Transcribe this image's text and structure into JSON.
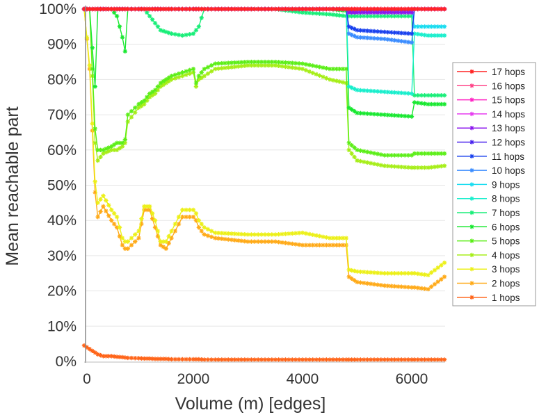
{
  "chart_data": {
    "type": "line",
    "title": "",
    "xlabel": "Volume (m) [edges]",
    "ylabel": "Mean reachable part",
    "xlim": [
      0,
      6600
    ],
    "ylim": [
      0,
      100
    ],
    "xticks": [
      0,
      2000,
      4000,
      6000
    ],
    "xtick_labels": [
      "0",
      "2000",
      "4000",
      "6000"
    ],
    "yticks": [
      0,
      10,
      20,
      30,
      40,
      50,
      60,
      70,
      80,
      90,
      100
    ],
    "ytick_labels": [
      "0%",
      "10%",
      "20%",
      "30%",
      "40%",
      "50%",
      "60%",
      "70%",
      "80%",
      "90%",
      "100%"
    ],
    "grid": "horizontal",
    "legend_position": "right",
    "marker": "asterisk",
    "x": [
      0,
      100,
      200,
      250,
      350,
      500,
      600,
      700,
      750,
      800,
      1000,
      1100,
      1200,
      1300,
      1400,
      1500,
      1600,
      1800,
      2000,
      2050,
      2100,
      2200,
      2400,
      3000,
      3500,
      4000,
      4500,
      4800,
      4850,
      5000,
      5500,
      6000,
      6050,
      6300,
      6600
    ],
    "series": [
      {
        "name": "1 hops",
        "color": "#ff6418",
        "values": [
          4.5,
          3.5,
          2.5,
          2,
          1.5,
          1.5,
          1.3,
          1.2,
          1.1,
          1,
          0.9,
          0.8,
          0.8,
          0.7,
          0.7,
          0.7,
          0.6,
          0.6,
          0.6,
          0.6,
          0.6,
          0.5,
          0.5,
          0.5,
          0.5,
          0.5,
          0.5,
          0.5,
          0.5,
          0.5,
          0.5,
          0.5,
          0.5,
          0.5,
          0.5
        ]
      },
      {
        "name": "2 hops",
        "color": "#ffaa18",
        "values": [
          100,
          83,
          48,
          41,
          44,
          40,
          38,
          33,
          32,
          32,
          35,
          43,
          43,
          38,
          33,
          32,
          35,
          41,
          41,
          40,
          38,
          36,
          35,
          34,
          34,
          33,
          33,
          33,
          24,
          22.5,
          21.5,
          21,
          21,
          20.5,
          24
        ]
      },
      {
        "name": "3 hops",
        "color": "#ecf018",
        "values": [
          100,
          84,
          51,
          45,
          47,
          43,
          41,
          35,
          34,
          34,
          37,
          44,
          44,
          40,
          34,
          34,
          37,
          43,
          43,
          42,
          40,
          38,
          36.5,
          36,
          36,
          36.5,
          35,
          35,
          26,
          25.5,
          25,
          25,
          25,
          24.5,
          28
        ]
      },
      {
        "name": "4 hops",
        "color": "#a6ee18",
        "values": [
          100,
          100,
          62,
          57,
          59,
          60,
          60,
          61,
          62,
          68,
          72,
          73,
          75,
          76,
          78,
          79,
          80,
          81,
          82,
          78,
          80,
          81,
          83,
          84,
          84,
          83,
          80,
          79,
          60,
          57,
          55.5,
          55,
          55,
          55,
          55.5
        ]
      },
      {
        "name": "5 hops",
        "color": "#5cee18",
        "values": [
          100,
          100,
          66,
          60,
          60,
          61,
          62,
          62,
          63,
          70,
          73,
          74,
          76,
          77,
          79,
          80,
          81,
          82,
          83,
          79,
          81,
          83,
          84.5,
          85,
          85,
          84.5,
          83,
          83,
          62,
          60,
          58.5,
          58.5,
          59,
          59,
          59
        ]
      },
      {
        "name": "6 hops",
        "color": "#18e830",
        "values": [
          100,
          100,
          78,
          100,
          100,
          100,
          98,
          92,
          88,
          100,
          100,
          100,
          100,
          100,
          100,
          100,
          100,
          100,
          100,
          100,
          100,
          100,
          100,
          100,
          100,
          100,
          100,
          99.5,
          72,
          70.5,
          70,
          69.5,
          73.5,
          73,
          73
        ]
      },
      {
        "name": "7 hops",
        "color": "#18ee78",
        "values": [
          100,
          100,
          100,
          100,
          100,
          100,
          100,
          100,
          100,
          100,
          100,
          100,
          98,
          96,
          94,
          93.5,
          93,
          92.5,
          93,
          94,
          95,
          100,
          100,
          100,
          100,
          99,
          98.5,
          98,
          98,
          98,
          98,
          98,
          75.5,
          75.5,
          75.5
        ]
      },
      {
        "name": "8 hops",
        "color": "#18eecc",
        "values": [
          100,
          100,
          100,
          100,
          100,
          100,
          100,
          100,
          100,
          100,
          100,
          100,
          100,
          100,
          100,
          100,
          100,
          100,
          100,
          100,
          100,
          100,
          100,
          100,
          100,
          100,
          100,
          100,
          78,
          77,
          76.5,
          76,
          93,
          92.5,
          92.5
        ]
      },
      {
        "name": "9 hops",
        "color": "#18dcf0",
        "values": [
          100,
          100,
          100,
          100,
          100,
          100,
          100,
          100,
          100,
          100,
          100,
          100,
          100,
          100,
          100,
          100,
          100,
          100,
          100,
          100,
          100,
          100,
          100,
          100,
          100,
          100,
          100,
          100,
          99.5,
          99.5,
          99.5,
          99.5,
          95,
          95,
          95
        ]
      },
      {
        "name": "10 hops",
        "color": "#3a8cff",
        "values": [
          100,
          100,
          100,
          100,
          100,
          100,
          100,
          100,
          100,
          100,
          100,
          100,
          100,
          100,
          100,
          100,
          100,
          100,
          100,
          100,
          100,
          100,
          100,
          100,
          100,
          100,
          100,
          100,
          93,
          92,
          91.5,
          90.5,
          100,
          100,
          100
        ]
      },
      {
        "name": "11 hops",
        "color": "#1840ee",
        "values": [
          100,
          100,
          100,
          100,
          100,
          100,
          100,
          100,
          100,
          100,
          100,
          100,
          100,
          100,
          100,
          100,
          100,
          100,
          100,
          100,
          100,
          100,
          100,
          100,
          100,
          100,
          100,
          100,
          95,
          94,
          93.5,
          93,
          100,
          100,
          100
        ]
      },
      {
        "name": "12 hops",
        "color": "#4a24ee",
        "values": [
          100,
          100,
          100,
          100,
          100,
          100,
          100,
          100,
          100,
          100,
          100,
          100,
          100,
          100,
          100,
          100,
          100,
          100,
          100,
          100,
          100,
          100,
          100,
          100,
          100,
          100,
          100,
          100,
          99.5,
          99.5,
          99.5,
          99.5,
          100,
          100,
          100
        ]
      },
      {
        "name": "13 hops",
        "color": "#8c18ee",
        "values": [
          100,
          100,
          100,
          100,
          100,
          100,
          100,
          100,
          100,
          100,
          100,
          100,
          100,
          100,
          100,
          100,
          100,
          100,
          100,
          100,
          100,
          100,
          100,
          100,
          100,
          100,
          100,
          100,
          99,
          99,
          99,
          99,
          100,
          100,
          100
        ]
      },
      {
        "name": "14 hops",
        "color": "#e63cf0",
        "values": [
          100,
          100,
          100,
          100,
          100,
          100,
          100,
          100,
          100,
          100,
          100,
          100,
          100,
          100,
          100,
          100,
          100,
          100,
          100,
          100,
          100,
          100,
          100,
          100,
          100,
          100,
          100,
          100,
          100,
          100,
          100,
          100,
          100,
          100,
          100
        ]
      },
      {
        "name": "15 hops",
        "color": "#ff24c4",
        "values": [
          100,
          100,
          100,
          100,
          100,
          100,
          100,
          100,
          100,
          100,
          100,
          100,
          100,
          100,
          100,
          100,
          100,
          100,
          100,
          100,
          100,
          100,
          100,
          100,
          100,
          100,
          100,
          100,
          100,
          100,
          100,
          100,
          100,
          100,
          100
        ]
      },
      {
        "name": "16 hops",
        "color": "#ff4488",
        "values": [
          100,
          100,
          100,
          100,
          100,
          100,
          100,
          100,
          100,
          100,
          100,
          100,
          100,
          100,
          100,
          100,
          100,
          100,
          100,
          100,
          100,
          100,
          100,
          100,
          100,
          100,
          100,
          100,
          100,
          100,
          100,
          100,
          100,
          100,
          100
        ]
      },
      {
        "name": "17 hops",
        "color": "#ff2424",
        "values": [
          100,
          100,
          100,
          100,
          100,
          100,
          100,
          100,
          100,
          100,
          100,
          100,
          100,
          100,
          100,
          100,
          100,
          100,
          100,
          100,
          100,
          100,
          100,
          100,
          100,
          100,
          100,
          100,
          100,
          100,
          100,
          100,
          100,
          100,
          100
        ]
      }
    ]
  }
}
